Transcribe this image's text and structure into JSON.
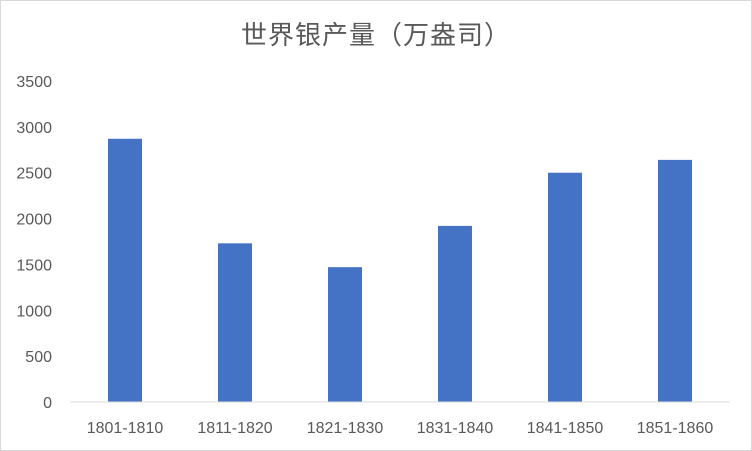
{
  "chart_data": {
    "type": "bar",
    "title": "世界银产量（万盎司）",
    "categories": [
      "1801-1810",
      "1811-1820",
      "1821-1830",
      "1831-1840",
      "1841-1850",
      "1851-1860"
    ],
    "values": [
      2870,
      1730,
      1470,
      1920,
      2500,
      2640
    ],
    "ylim": [
      0,
      3500
    ],
    "yticks": [
      0,
      500,
      1000,
      1500,
      2000,
      2500,
      3000,
      3500
    ],
    "grid": false,
    "legend": "none",
    "colors": {
      "bar": "#4472c4",
      "axis": "#d9d9d9",
      "text": "#595959"
    }
  }
}
